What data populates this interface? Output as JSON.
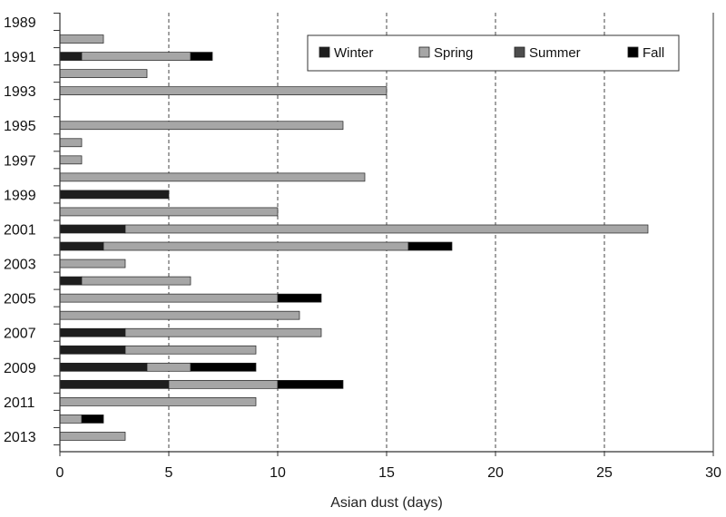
{
  "chart_data": {
    "type": "bar",
    "orientation": "horizontal",
    "stacked": true,
    "title": "",
    "xlabel": "Asian dust (days)",
    "ylabel": "",
    "xlim": [
      0,
      30
    ],
    "x_ticks": [
      0,
      5,
      10,
      15,
      20,
      25,
      30
    ],
    "gridlines": "vertical dashed at x ticks",
    "legend_position": "top-right",
    "categories": [
      "1989",
      "1990",
      "1991",
      "1992",
      "1993",
      "1994",
      "1995",
      "1996",
      "1997",
      "1998",
      "1999",
      "2000",
      "2001",
      "2002",
      "2003",
      "2004",
      "2005",
      "2006",
      "2007",
      "2008",
      "2009",
      "2010",
      "2011",
      "2012",
      "2013"
    ],
    "year_tick_labels": [
      "1989",
      "1991",
      "1993",
      "1995",
      "1997",
      "1999",
      "2001",
      "2003",
      "2005",
      "2007",
      "2009",
      "2011",
      "2013"
    ],
    "series": [
      {
        "name": "Winter",
        "color": "#1e1e1e",
        "values": [
          0,
          0,
          1,
          0,
          0,
          0,
          0,
          0,
          0,
          0,
          5,
          0,
          3,
          2,
          0,
          1,
          0,
          0,
          3,
          3,
          4,
          5,
          0,
          0,
          0
        ]
      },
      {
        "name": "Spring",
        "color": "#a6a6a6",
        "values": [
          0,
          2,
          5,
          4,
          15,
          0,
          13,
          1,
          1,
          14,
          0,
          10,
          24,
          14,
          3,
          5,
          10,
          11,
          9,
          6,
          2,
          5,
          9,
          1,
          3
        ]
      },
      {
        "name": "Summer",
        "color": "#4d4d4d",
        "values": [
          0,
          0,
          0,
          0,
          0,
          0,
          0,
          0,
          0,
          0,
          0,
          0,
          0,
          0,
          0,
          0,
          0,
          0,
          0,
          0,
          0,
          0,
          0,
          0,
          0
        ]
      },
      {
        "name": "Fall",
        "color": "#000000",
        "values": [
          0,
          0,
          1,
          0,
          0,
          0,
          0,
          0,
          0,
          0,
          0,
          0,
          0,
          2,
          0,
          0,
          2,
          0,
          0,
          0,
          3,
          3,
          0,
          1,
          0
        ]
      }
    ]
  }
}
